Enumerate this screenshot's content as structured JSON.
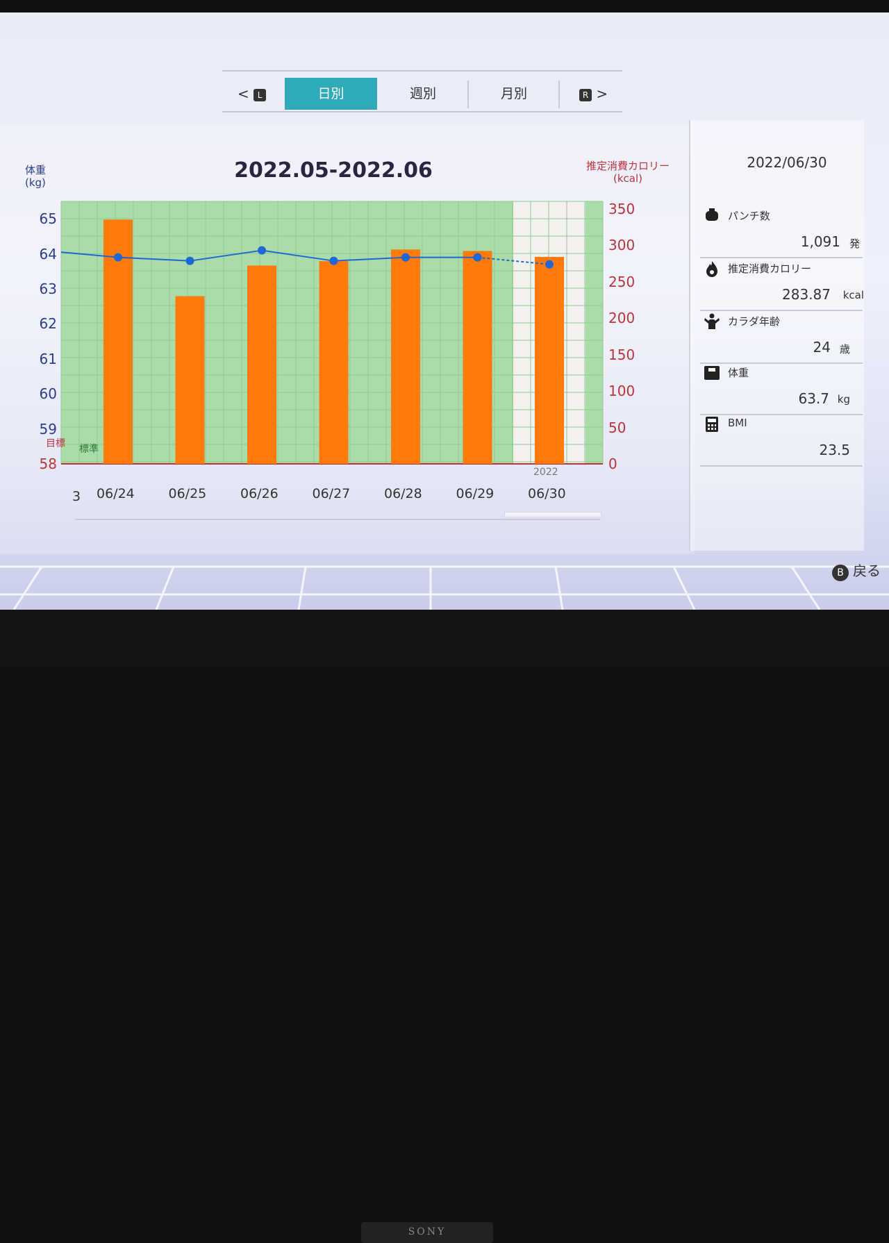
{
  "tabs": {
    "left_button": "L",
    "right_button": "R",
    "items": [
      {
        "label": "日別",
        "active": true
      },
      {
        "label": "週別",
        "active": false
      },
      {
        "label": "月別",
        "active": false
      }
    ]
  },
  "chart": {
    "title": "2022.05-2022.06",
    "left_axis_title": "体重\n(kg)",
    "right_axis_title": "推定消費カロリー\n(kcal)",
    "goal_label": "目標",
    "standard_label": "標準",
    "year_label": "2022",
    "partial_tick": "3",
    "colors": {
      "bars": "#ff7a0a",
      "line": "#1f66d6",
      "band": "#a9dca8",
      "highlight": "#f3f0ee"
    }
  },
  "chart_data": {
    "type": "bar+line",
    "categories": [
      "06/24",
      "06/25",
      "06/26",
      "06/27",
      "06/28",
      "06/29",
      "06/30"
    ],
    "series": [
      {
        "values": [
          335,
          230,
          272,
          278,
          294,
          292,
          283.87
        ],
        "axis": "right"
      },
      {
        "values": [
          63.9,
          63.8,
          64.1,
          63.8,
          63.9,
          63.9,
          63.7
        ],
        "axis": "left"
      }
    ],
    "left_ticks": [
      58,
      59,
      60,
      61,
      62,
      63,
      64,
      65
    ],
    "right_ticks": [
      0,
      50,
      100,
      150,
      200,
      250,
      300,
      350
    ],
    "ylim_left": [
      58,
      65.5
    ],
    "ylim_right": [
      0,
      360
    ],
    "highlighted_category": "06/30"
  },
  "summary": {
    "date": "2022/06/30",
    "stats": [
      {
        "label": "パンチ数",
        "value": "1,091",
        "unit": "発",
        "icon": "punch-bag-icon"
      },
      {
        "label": "推定消費カロリー",
        "value": "283.87",
        "unit": "kcal",
        "icon": "flame-icon"
      },
      {
        "label": "カラダ年齢",
        "value": "24",
        "unit": "歳",
        "icon": "body-age-icon"
      },
      {
        "label": "体重",
        "value": "63.7",
        "unit": "kg",
        "icon": "scale-icon"
      },
      {
        "label": "BMI",
        "value": "23.5",
        "unit": "",
        "icon": "calculator-icon"
      }
    ]
  },
  "footer": {
    "back_button": "B",
    "back_label": "戻る"
  },
  "tv": {
    "brand": "SONY"
  }
}
